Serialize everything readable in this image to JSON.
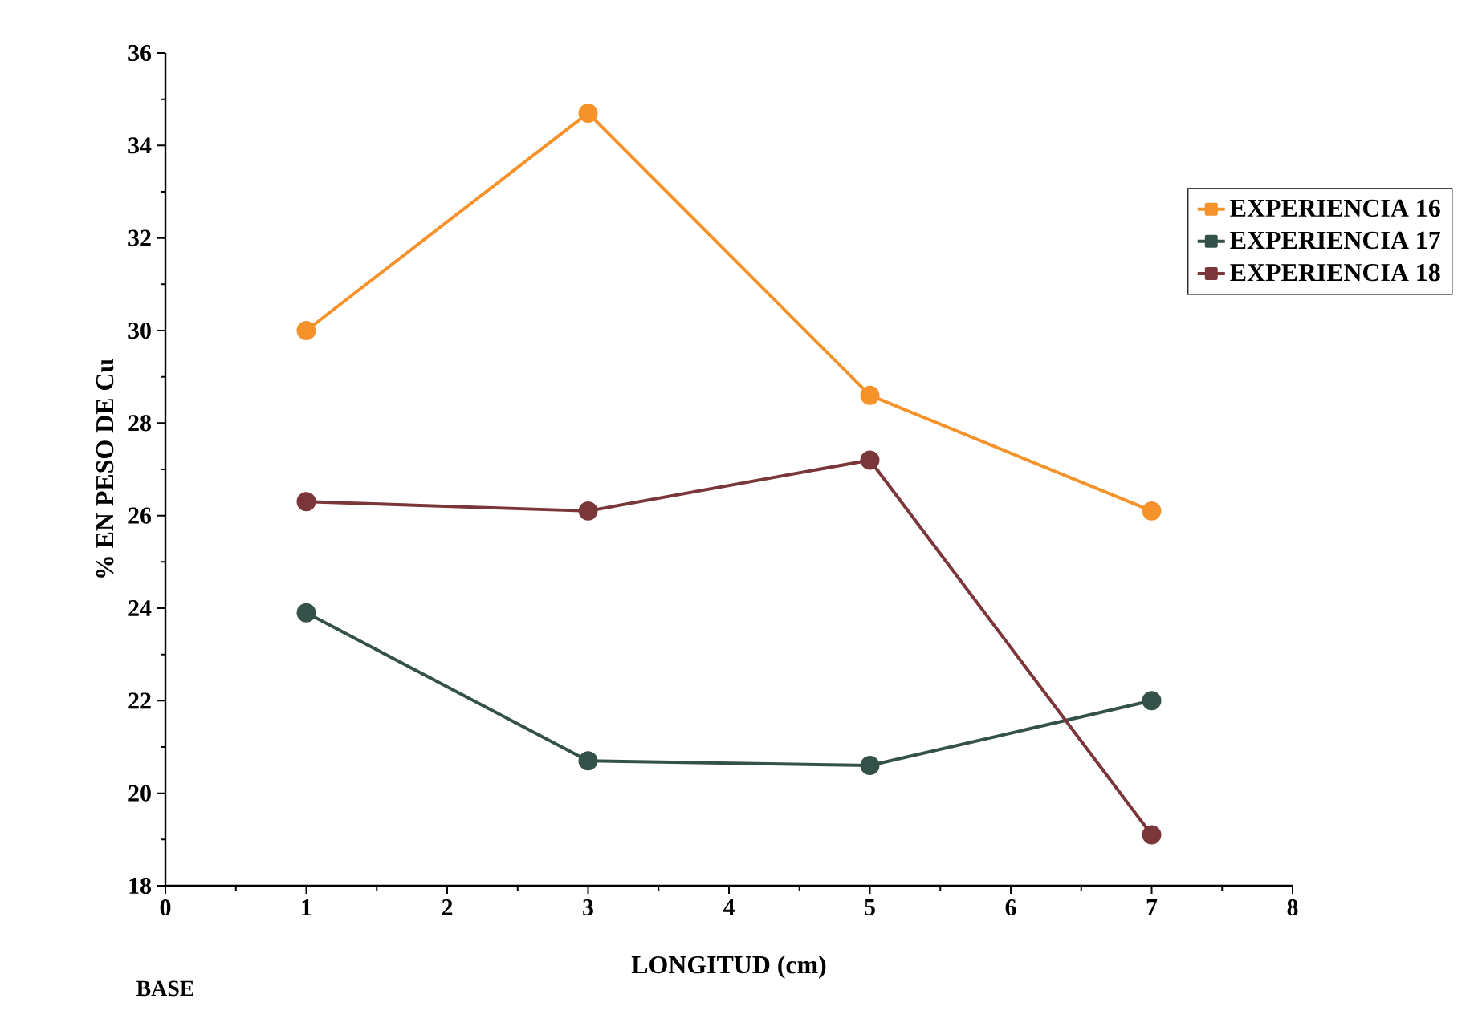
{
  "chart_data": {
    "type": "line",
    "xlabel": "LONGITUD (cm)",
    "ylabel": "% EN PESO DE Cu",
    "x": [
      1,
      3,
      5,
      7
    ],
    "series": [
      {
        "name": "EXPERIENCIA 16",
        "color": "#f5922a",
        "values": [
          30.0,
          34.7,
          28.6,
          26.1
        ]
      },
      {
        "name": "EXPERIENCIA 17",
        "color": "#34524a",
        "values": [
          23.9,
          20.7,
          20.6,
          22.0
        ]
      },
      {
        "name": "EXPERIENCIA 18",
        "color": "#7a3638",
        "values": [
          26.3,
          26.1,
          27.2,
          19.1
        ]
      }
    ],
    "xlim": [
      0,
      8
    ],
    "xticks": [
      0,
      1,
      2,
      3,
      4,
      5,
      6,
      7,
      8
    ],
    "ylim": [
      18,
      36
    ],
    "yticks": [
      18,
      20,
      22,
      24,
      26,
      28,
      30,
      32,
      34,
      36
    ],
    "annotations": [
      "BASE"
    ],
    "grid": false,
    "legend": "top right",
    "marker": "circle",
    "line_style": "solid"
  }
}
